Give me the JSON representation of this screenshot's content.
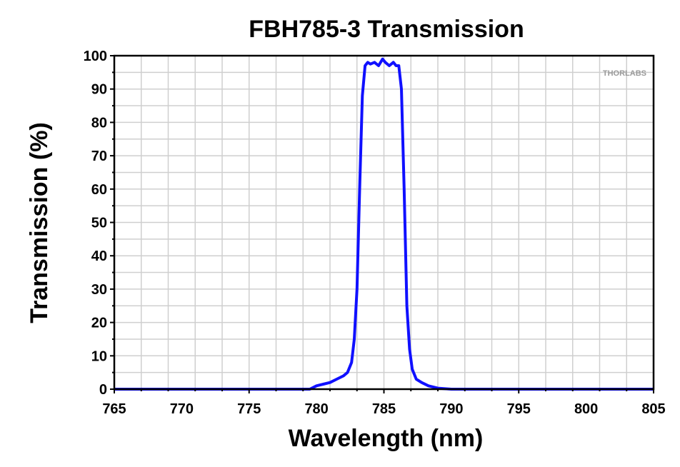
{
  "chart_data": {
    "type": "line",
    "title": "FBH785-3 Transmission",
    "xlabel": "Wavelength (nm)",
    "ylabel": "Transmission (%)",
    "xlim": [
      765,
      805
    ],
    "ylim": [
      0,
      100
    ],
    "xticks": [
      "765",
      "770",
      "775",
      "780",
      "785",
      "790",
      "795",
      "800",
      "805"
    ],
    "yticks": [
      "0",
      "10",
      "20",
      "30",
      "40",
      "50",
      "60",
      "70",
      "80",
      "90",
      "100"
    ],
    "grid": true,
    "logo_text": "THORLABS",
    "series": [
      {
        "color": "#1010ff",
        "x": [
          765,
          779.5,
          780.0,
          780.5,
          781.0,
          781.5,
          782.0,
          782.3,
          782.6,
          782.8,
          783.0,
          783.2,
          783.4,
          783.6,
          783.8,
          784.0,
          784.3,
          784.6,
          784.9,
          785.1,
          785.4,
          785.7,
          785.9,
          786.1,
          786.3,
          786.5,
          786.7,
          786.9,
          787.1,
          787.4,
          787.8,
          788.3,
          789.0,
          790.0,
          805
        ],
        "y": [
          0,
          0,
          1.0,
          1.5,
          2.0,
          3.0,
          4.0,
          5.0,
          8.0,
          15.0,
          30.0,
          60.0,
          88.0,
          97.0,
          98.0,
          97.5,
          98.0,
          97.0,
          99.0,
          98.0,
          97.0,
          98.0,
          97.0,
          97.0,
          90.0,
          60.0,
          25.0,
          12.0,
          6.0,
          3.0,
          2.0,
          1.0,
          0.3,
          0,
          0
        ]
      }
    ]
  }
}
